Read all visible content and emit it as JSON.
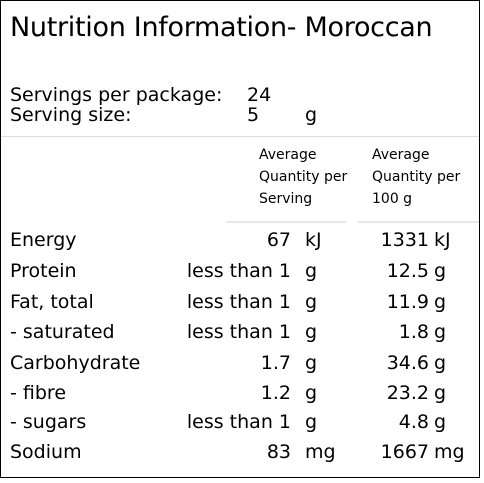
{
  "title": "Nutrition Information- Moroccan",
  "servings_per_package": {
    "label": "Servings per package:",
    "value": "24"
  },
  "serving_size": {
    "label": "Serving size:",
    "value": "5",
    "unit": "g"
  },
  "columns": {
    "per_serving": [
      "Average",
      "Quantity per",
      "Serving"
    ],
    "per_100g": [
      "Average",
      "Quantity per",
      "100 g"
    ]
  },
  "rows": [
    {
      "nutrient": "Energy",
      "per_serving": "67",
      "per_serving_unit": "kJ",
      "per_100g": "1331",
      "per_100g_unit": "kJ"
    },
    {
      "nutrient": "Protein",
      "per_serving": "less than 1",
      "per_serving_unit": "g",
      "per_100g": "12.5",
      "per_100g_unit": "g"
    },
    {
      "nutrient": "Fat, total",
      "per_serving": "less than 1",
      "per_serving_unit": "g",
      "per_100g": "11.9",
      "per_100g_unit": "g"
    },
    {
      "nutrient": "- saturated",
      "per_serving": "less than 1",
      "per_serving_unit": "g",
      "per_100g": "1.8",
      "per_100g_unit": "g"
    },
    {
      "nutrient": "Carbohydrate",
      "per_serving": "1.7",
      "per_serving_unit": "g",
      "per_100g": "34.6",
      "per_100g_unit": "g"
    },
    {
      "nutrient": "- fibre",
      "per_serving": "1.2",
      "per_serving_unit": "g",
      "per_100g": "23.2",
      "per_100g_unit": "g"
    },
    {
      "nutrient": "- sugars",
      "per_serving": "less than 1",
      "per_serving_unit": "g",
      "per_100g": "4.8",
      "per_100g_unit": "g"
    },
    {
      "nutrient": "Sodium",
      "per_serving": "83",
      "per_serving_unit": "mg",
      "per_100g": "1667",
      "per_100g_unit": "mg"
    }
  ]
}
